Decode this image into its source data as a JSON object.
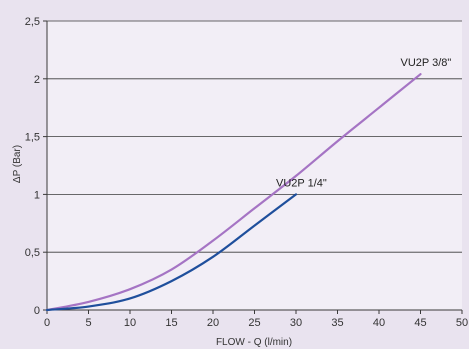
{
  "chart_data": {
    "type": "line",
    "xlabel": "FLOW - Q (l/min)",
    "ylabel": "ΔP (Bar)",
    "xlim": [
      0,
      50
    ],
    "ylim": [
      0,
      2.5
    ],
    "x_ticks": [
      0,
      5,
      10,
      15,
      20,
      25,
      30,
      35,
      40,
      45,
      50
    ],
    "x_tick_labels": [
      "0",
      "5",
      "10",
      "15",
      "20",
      "25",
      "30",
      "35",
      "40",
      "45",
      "50"
    ],
    "y_ticks": [
      0,
      0.5,
      1,
      1.5,
      2,
      2.5
    ],
    "y_tick_labels": [
      "0",
      "0,5",
      "1",
      "1,5",
      "2",
      "2,5"
    ],
    "grid": "horizontal",
    "series": [
      {
        "name": "VU2P 3/8\"",
        "color": "#a574c4",
        "x": [
          0,
          5,
          10,
          15,
          20,
          25,
          30,
          35,
          40,
          45
        ],
        "y": [
          0,
          0.07,
          0.18,
          0.35,
          0.6,
          0.88,
          1.16,
          1.46,
          1.75,
          2.04
        ]
      },
      {
        "name": "VU2P 1/4\"",
        "color": "#1f4f9c",
        "x": [
          0,
          5,
          10,
          15,
          20,
          25,
          30
        ],
        "y": [
          0,
          0.03,
          0.1,
          0.25,
          0.46,
          0.73,
          1.0
        ]
      }
    ]
  }
}
